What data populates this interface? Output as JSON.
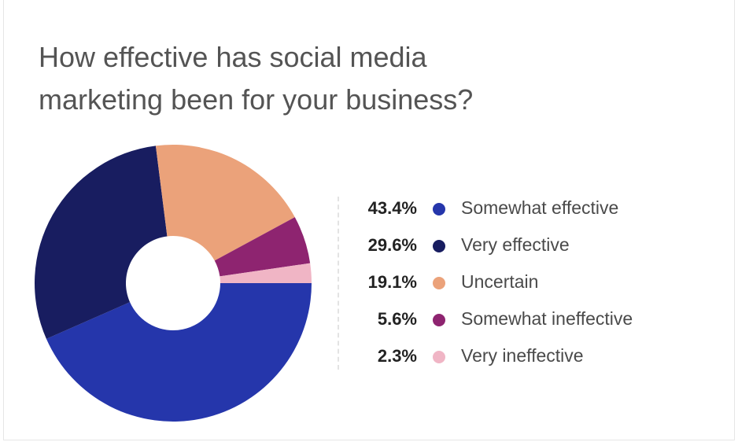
{
  "chart_data": {
    "type": "pie",
    "title_lines": [
      "How effective has social media",
      "marketing been for your business?"
    ],
    "donut": true,
    "legend_position": "right",
    "slices": [
      {
        "label": "Somewhat effective",
        "value": 43.4,
        "display": "43.4%",
        "color": "#2536ab"
      },
      {
        "label": "Very effective",
        "value": 29.6,
        "display": "29.6%",
        "color": "#181d60"
      },
      {
        "label": "Uncertain",
        "value": 19.1,
        "display": "19.1%",
        "color": "#eba27a"
      },
      {
        "label": "Somewhat ineffective",
        "value": 5.6,
        "display": "5.6%",
        "color": "#8e2470"
      },
      {
        "label": "Very ineffective",
        "value": 2.3,
        "display": "2.3%",
        "color": "#f0b5c5"
      }
    ]
  }
}
